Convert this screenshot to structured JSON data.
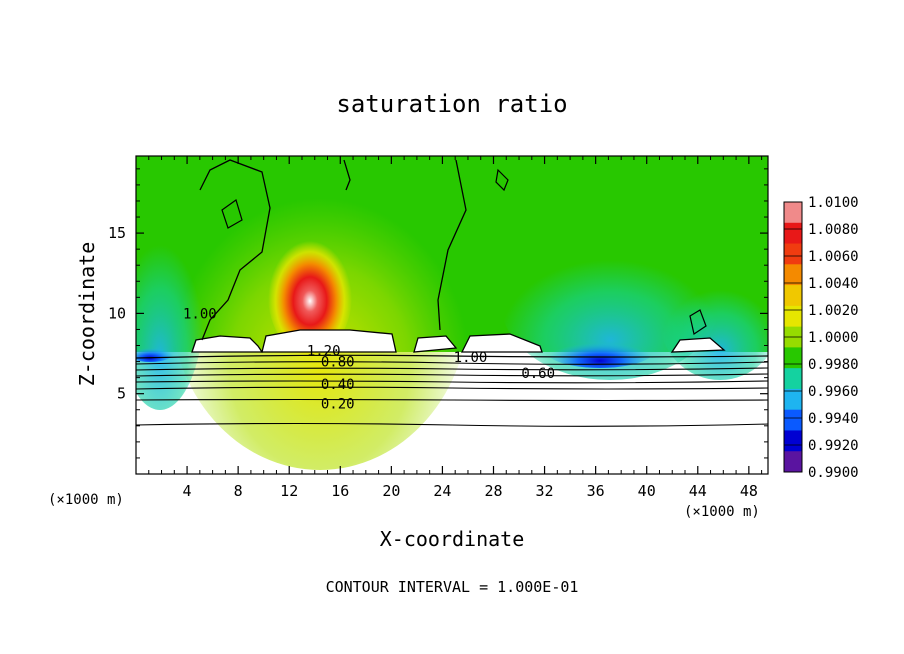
{
  "chart_data": {
    "type": "heatmap",
    "title": "saturation ratio",
    "xlabel": "X-coordinate",
    "ylabel": "Z-coordinate",
    "x_unit": "(×1000 m)",
    "y_unit": "(×1000 m)",
    "xlim": [
      0,
      49.5
    ],
    "ylim": [
      0,
      19.8
    ],
    "x_ticks": [
      4,
      8,
      12,
      16,
      20,
      24,
      28,
      32,
      36,
      40,
      44,
      48
    ],
    "y_ticks": [
      5,
      10,
      15
    ],
    "footer": "CONTOUR INTERVAL = 1.000E-01",
    "colorbar": {
      "ticks": [
        "1.0100",
        "1.0080",
        "1.0060",
        "1.0040",
        "1.0020",
        "1.0000",
        "0.9980",
        "0.9960",
        "0.9940",
        "0.9920",
        "0.9900"
      ],
      "colors": [
        "#f08a8a",
        "#e81818",
        "#f03c10",
        "#f48a00",
        "#f0c800",
        "#e6e600",
        "#96dc00",
        "#28c800",
        "#14d2a0",
        "#1eb4f0",
        "#0a5aff",
        "#0000d2",
        "#5a14a0"
      ]
    },
    "contour_labels": [
      {
        "text": "1.20",
        "x": 14.7,
        "z": 7.7
      },
      {
        "text": "0.80",
        "x": 15.8,
        "z": 7.0
      },
      {
        "text": "0.40",
        "x": 15.8,
        "z": 5.6
      },
      {
        "text": "0.20",
        "x": 15.8,
        "z": 4.4
      },
      {
        "text": "1.00",
        "x": 26.2,
        "z": 7.3
      },
      {
        "text": "0.60",
        "x": 31.5,
        "z": 6.3
      },
      {
        "text": "1.00",
        "x": 5.0,
        "z": 10.0
      }
    ]
  }
}
